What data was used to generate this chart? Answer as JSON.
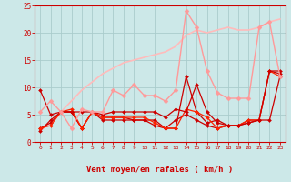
{
  "x": [
    0,
    1,
    2,
    3,
    4,
    5,
    6,
    7,
    8,
    9,
    10,
    11,
    12,
    13,
    14,
    15,
    16,
    17,
    18,
    19,
    20,
    21,
    22,
    23
  ],
  "series": [
    {
      "y": [
        2.5,
        3.5,
        5.5,
        5.5,
        2.5,
        5.5,
        4.5,
        4.5,
        4.5,
        4.0,
        4.0,
        3.0,
        2.5,
        2.5,
        12.0,
        5.5,
        3.5,
        4.0,
        3.0,
        3.0,
        4.0,
        4.0,
        13.0,
        12.5
      ],
      "color": "#cc0000",
      "lw": 0.9,
      "marker": "D",
      "ms": 2.0
    },
    {
      "y": [
        2.0,
        4.0,
        5.5,
        5.5,
        2.5,
        5.5,
        4.0,
        4.0,
        4.0,
        4.0,
        4.0,
        4.0,
        2.5,
        4.0,
        5.0,
        4.0,
        3.0,
        2.5,
        3.0,
        3.0,
        3.5,
        4.0,
        4.0,
        12.0
      ],
      "color": "#cc0000",
      "lw": 0.9,
      "marker": "D",
      "ms": 2.0
    },
    {
      "y": [
        2.5,
        3.0,
        5.5,
        6.0,
        2.5,
        5.5,
        4.5,
        4.5,
        4.5,
        4.5,
        4.5,
        3.5,
        2.5,
        2.5,
        6.0,
        5.5,
        4.5,
        2.5,
        3.0,
        3.0,
        4.0,
        4.0,
        13.0,
        12.0
      ],
      "color": "#ff2200",
      "lw": 0.9,
      "marker": "D",
      "ms": 2.0
    },
    {
      "y": [
        9.5,
        5.0,
        5.5,
        5.5,
        5.5,
        5.5,
        5.0,
        5.5,
        5.5,
        5.5,
        5.5,
        5.5,
        4.5,
        6.0,
        5.5,
        10.5,
        5.5,
        3.5,
        3.0,
        3.0,
        3.5,
        4.0,
        13.0,
        13.0
      ],
      "color": "#cc0000",
      "lw": 0.9,
      "marker": "D",
      "ms": 2.0
    },
    {
      "y": [
        5.5,
        7.5,
        5.5,
        2.5,
        6.0,
        5.5,
        5.5,
        9.5,
        8.5,
        10.5,
        8.5,
        8.5,
        7.5,
        9.5,
        24.0,
        21.0,
        13.0,
        9.0,
        8.0,
        8.0,
        8.0,
        21.0,
        22.0,
        12.0
      ],
      "color": "#ff9999",
      "lw": 1.0,
      "marker": "D",
      "ms": 2.5
    },
    {
      "y": [
        2.0,
        3.5,
        5.5,
        7.5,
        9.5,
        11.0,
        12.5,
        13.5,
        14.5,
        15.0,
        15.5,
        16.0,
        16.5,
        17.5,
        19.5,
        20.5,
        20.0,
        20.5,
        21.0,
        20.5,
        20.5,
        21.0,
        22.0,
        22.5
      ],
      "color": "#ffbbbb",
      "lw": 1.2,
      "marker": null,
      "ms": 0
    }
  ],
  "xlabel": "Vent moyen/en rafales ( km/h )",
  "xlim_min": -0.5,
  "xlim_max": 23.5,
  "ylim": [
    0,
    25
  ],
  "yticks": [
    0,
    5,
    10,
    15,
    20,
    25
  ],
  "xticks": [
    0,
    1,
    2,
    3,
    4,
    5,
    6,
    7,
    8,
    9,
    10,
    11,
    12,
    13,
    14,
    15,
    16,
    17,
    18,
    19,
    20,
    21,
    22,
    23
  ],
  "bg_color": "#cce8e8",
  "grid_color": "#aacccc",
  "axis_color": "#cc0000",
  "tick_color": "#cc0000",
  "label_color": "#cc0000"
}
